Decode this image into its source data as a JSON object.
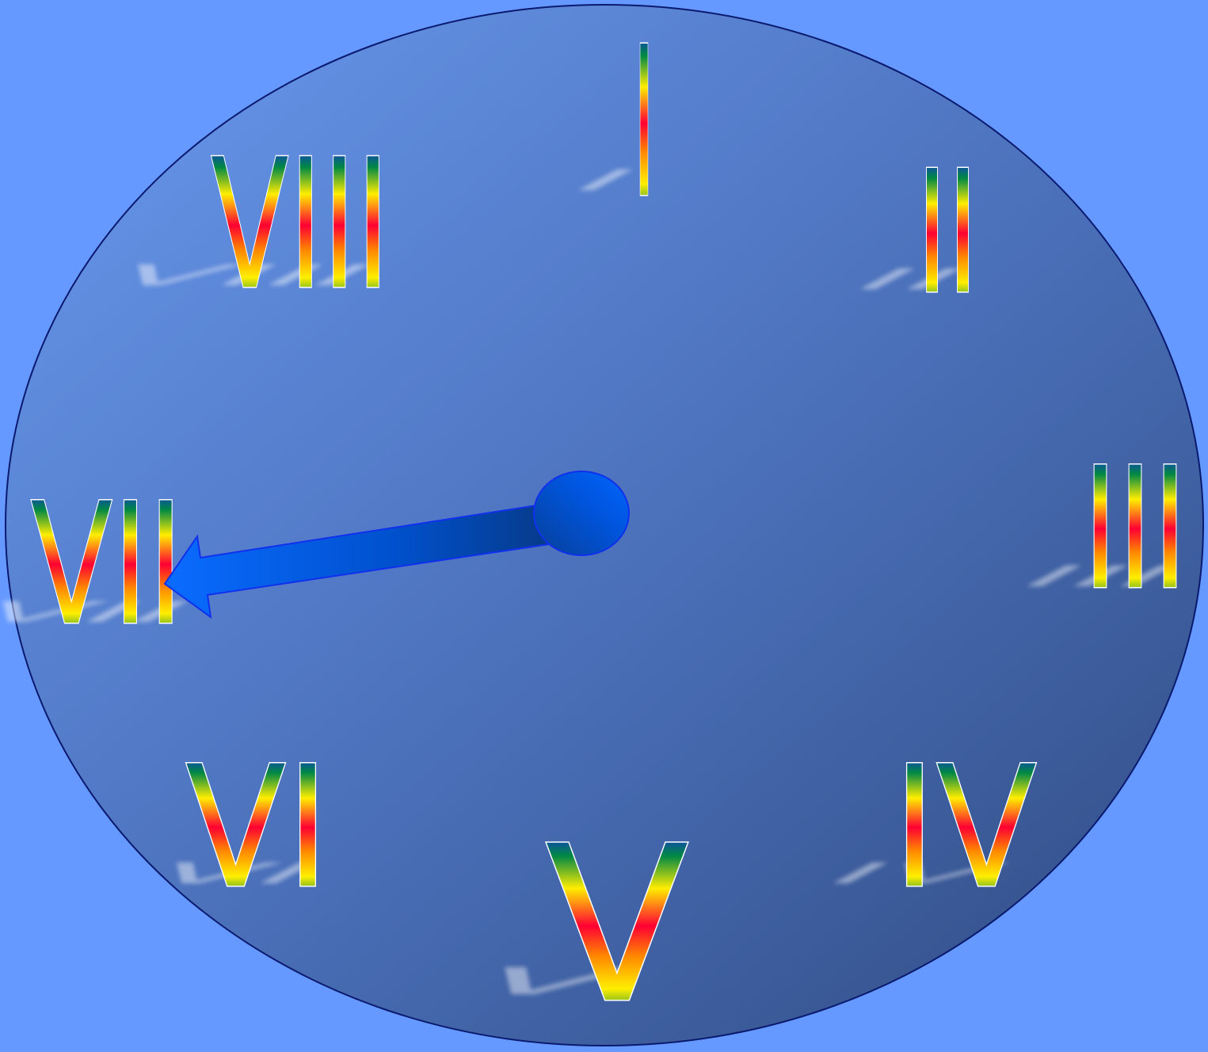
{
  "colors": {
    "background": "#6699ff",
    "dial_light": "#6190e6",
    "dial_dark": "#36528a",
    "dial_border": "#0a1a6e",
    "hand": "#0055dd",
    "hand_dark": "#073f99",
    "hub": "#0058e0",
    "numeral_outline": "#ffffff"
  },
  "numeral_fill": "rainbow-gradient",
  "numerals": [
    "I",
    "II",
    "III",
    "IV",
    "V",
    "VI",
    "VII",
    "VIII"
  ],
  "hand": {
    "type": "arrow",
    "points_to": "VII"
  }
}
